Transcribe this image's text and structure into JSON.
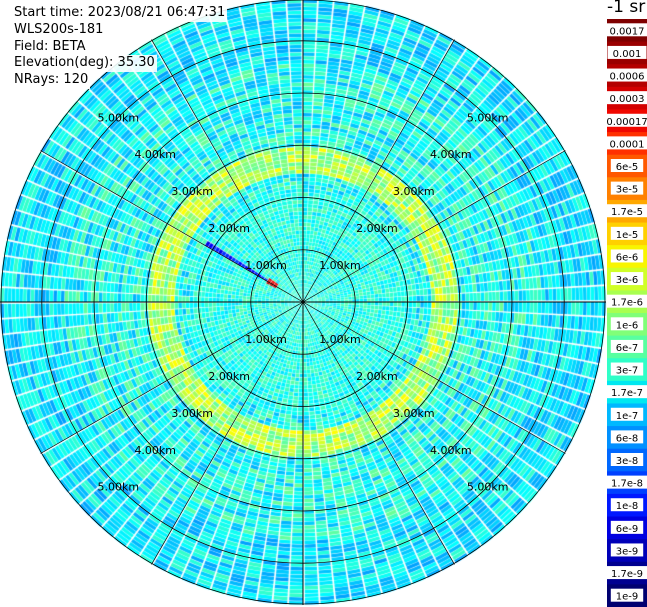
{
  "header": {
    "start_time": "Start time: 2023/08/21 06:47:31",
    "instrument": "WLS200s-181",
    "field": "Field: BETA",
    "elevation": "Elevation(deg): 35.30",
    "nrays": "NRays: 120"
  },
  "colorbar": {
    "unit_label": "-1 sr",
    "ticks": [
      "0.0017",
      "0.001",
      "0.0006",
      "0.0003",
      "0.00017",
      "0.0001",
      "6e-5",
      "3e-5",
      "1.7e-5",
      "1e-5",
      "6e-6",
      "3e-6",
      "1.7e-6",
      "1e-6",
      "6e-7",
      "3e-7",
      "1.7e-7",
      "1e-7",
      "6e-8",
      "3e-8",
      "1.7e-8",
      "1e-8",
      "6e-9",
      "3e-9",
      "1.7e-9",
      "1e-9"
    ],
    "colors": [
      "#7f0000",
      "#9a0000",
      "#b40000",
      "#d40000",
      "#f00800",
      "#ff3000",
      "#ff5800",
      "#ff8000",
      "#ffa800",
      "#ffd000",
      "#f8f500",
      "#d0ff28",
      "#a8ff50",
      "#80ff78",
      "#58ffa0",
      "#30ffc8",
      "#00e8f0",
      "#00b8ff",
      "#0090ff",
      "#0068ff",
      "#0040ff",
      "#0018ff",
      "#0000e0",
      "#0000b8",
      "#000090",
      "#000070"
    ]
  },
  "chart_data": {
    "type": "heatmap",
    "projection": "polar PPI scan",
    "nrays": 120,
    "range_rings_km": [
      1,
      2,
      3,
      4,
      5
    ],
    "ring_labels": [
      "1.00km",
      "2.00km",
      "3.00km",
      "4.00km",
      "5.00km"
    ],
    "max_range_km": 5.8,
    "radial_spokes": 12,
    "features": [
      {
        "kind": "enhanced backscatter ring",
        "range_km": [
          2.5,
          3.0
        ],
        "color": "#80ff78"
      },
      {
        "kind": "near-field hotspot",
        "range_km": [
          0.6,
          0.8
        ],
        "azimuth_deg": 300,
        "color": "#ff3000"
      },
      {
        "kind": "beam blockage streak",
        "azimuth_deg": 300,
        "color": "#0018ff"
      }
    ]
  }
}
